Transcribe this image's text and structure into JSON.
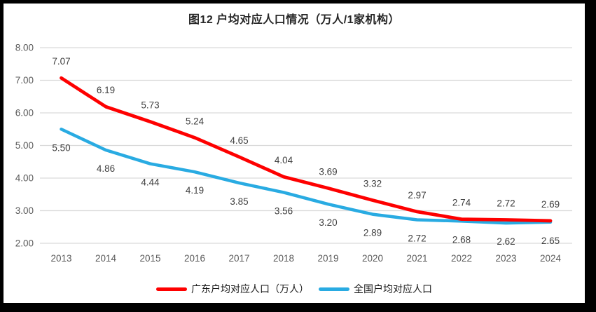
{
  "chart_data": {
    "type": "line",
    "title": "图12 户均对应人口情况（万人/1家机构）",
    "categories": [
      "2013",
      "2014",
      "2015",
      "2016",
      "2017",
      "2018",
      "2019",
      "2020",
      "2021",
      "2022",
      "2023",
      "2024"
    ],
    "series": [
      {
        "name": "广东户均对应人口（万人）",
        "color": "#fe0000",
        "line_width": 4.8,
        "label_offset": -19,
        "values": [
          7.07,
          6.19,
          5.73,
          5.24,
          4.65,
          4.04,
          3.69,
          3.32,
          2.97,
          2.74,
          2.72,
          2.69
        ]
      },
      {
        "name": "全国户均对应人口",
        "color": "#29abe2",
        "line_width": 4.5,
        "label_offset": 31,
        "values": [
          5.5,
          4.86,
          4.44,
          4.19,
          3.85,
          3.56,
          3.2,
          2.89,
          2.72,
          2.68,
          2.62,
          2.65
        ]
      }
    ],
    "ylim": [
      2,
      8
    ],
    "ytick_step": 1,
    "y_tick_labels": [
      "8.00",
      "7.00",
      "6.00",
      "5.00",
      "4.00",
      "3.00",
      "2.00"
    ],
    "grid": true,
    "legend_position": "bottom",
    "colors": {
      "gridline": "#d9d9d9",
      "axis_text": "#595959",
      "data_label": "#404040",
      "title_text": "#262626",
      "frame": "#000000",
      "background": "#ffffff"
    }
  }
}
